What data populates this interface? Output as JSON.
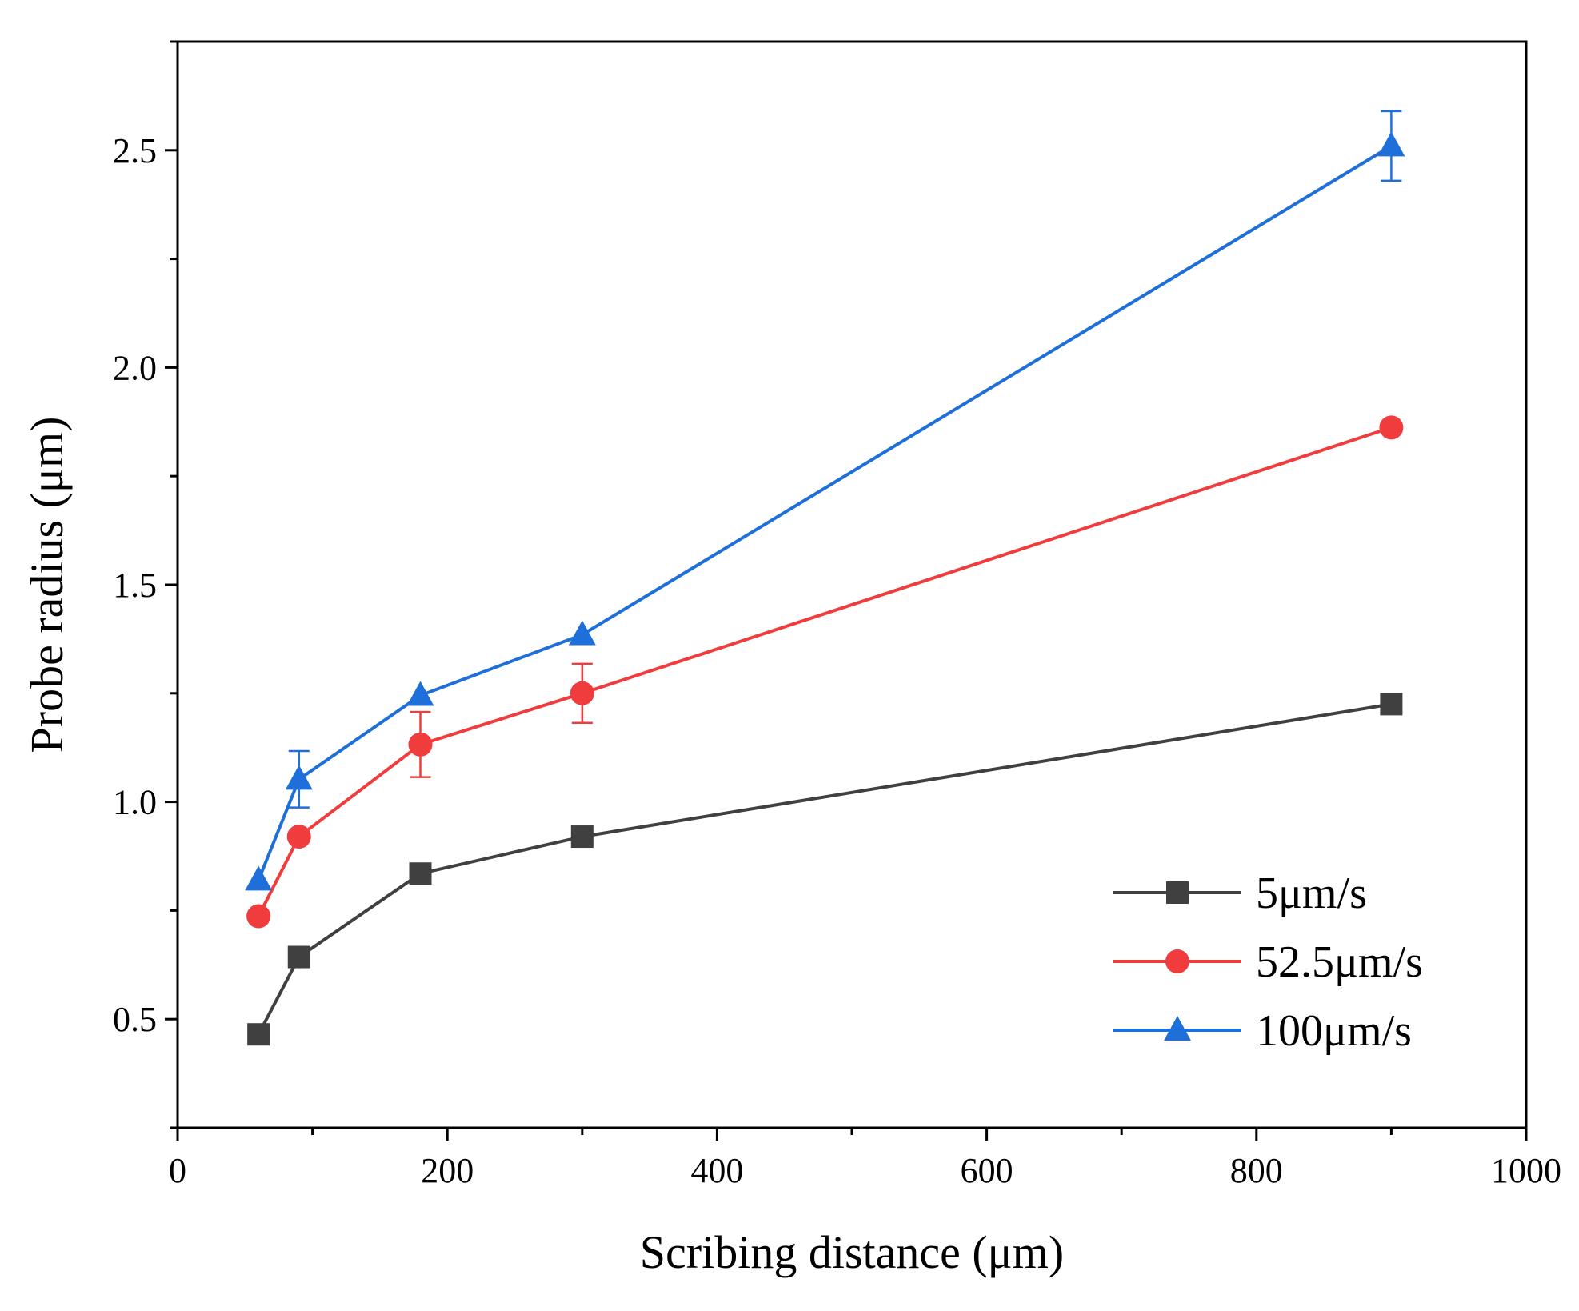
{
  "chart_data": {
    "type": "line",
    "title": "",
    "xlabel": "Scribing distance (μm)",
    "ylabel": "Probe radius (μm)",
    "xlim": [
      0,
      1000
    ],
    "ylim": [
      0.25,
      2.75
    ],
    "xticks": [
      0,
      200,
      400,
      600,
      800,
      1000
    ],
    "xtick_labels": [
      "0",
      "200",
      "400",
      "600",
      "800",
      "1000"
    ],
    "yticks": [
      0.5,
      1.0,
      1.5,
      2.0,
      2.5
    ],
    "ytick_labels": [
      "0.5",
      "1.0",
      "1.5",
      "2.0",
      "2.5"
    ],
    "grid": false,
    "legend_position": "bottom-right",
    "x": [
      60,
      90,
      180,
      300,
      900
    ],
    "series": [
      {
        "name": "5μm/s",
        "color": "#404040",
        "marker": "square",
        "values": [
          0.465,
          0.643,
          0.835,
          0.92,
          1.225
        ],
        "errors": [
          0,
          0,
          0,
          0,
          0
        ]
      },
      {
        "name": "52.5μm/s",
        "color": "#f03c3c",
        "marker": "circle",
        "values": [
          0.737,
          0.92,
          1.132,
          1.25,
          1.862
        ],
        "errors": [
          0,
          0,
          0.075,
          0.068,
          0
        ]
      },
      {
        "name": "100μm/s",
        "color": "#1e6fd9",
        "marker": "triangle",
        "values": [
          0.82,
          1.052,
          1.245,
          1.385,
          2.51
        ],
        "errors": [
          0,
          0.065,
          0,
          0,
          0.08
        ]
      }
    ]
  }
}
